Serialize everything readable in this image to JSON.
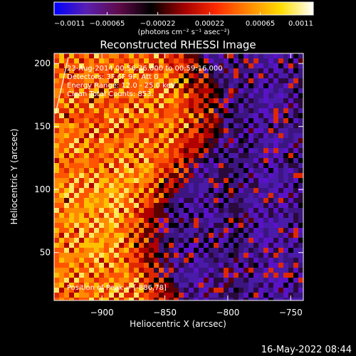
{
  "chart_data": {
    "type": "heatmap",
    "title": "Reconstructed RHESSI Image",
    "xlabel": "Heliocentric X (arcsec)",
    "ylabel": "Heliocentric Y (arcsec)",
    "xlim": [
      -938,
      -740
    ],
    "ylim": [
      12,
      208
    ],
    "xticks": [
      -900,
      -850,
      -800,
      -750
    ],
    "xtick_labels": [
      "−900",
      "−850",
      "−800",
      "−750"
    ],
    "yticks": [
      50,
      100,
      150,
      200
    ],
    "ytick_labels": [
      "50",
      "100",
      "150",
      "200"
    ],
    "colorbar": {
      "min": -0.0011,
      "max": 0.0011,
      "ticks": [
        -0.0011,
        -0.00065,
        -0.00022,
        0.00022,
        0.00065,
        0.0011
      ],
      "tick_labels": [
        "−0.0011",
        "−0.00065",
        "−0.00022",
        "0.00022",
        "0.00065",
        "0.0011"
      ],
      "label": "(photons cm⁻² s⁻¹ asec⁻²)",
      "colormap_stops": [
        "#0000ff",
        "#5a1fb0",
        "#5f0a4a",
        "#000000",
        "#a00000",
        "#ff2a00",
        "#ff8800",
        "#ffdd00",
        "#ffffff"
      ]
    },
    "annotations": [
      "23-Aug-2014 00:56:36.000 to 00:59:16.000",
      "Detectors: 3F 6F 9F, Att 0",
      "Energy Range: 12.0 - 25.0 keV",
      "Clean    Total Counts: 853."
    ],
    "peak_label": "Position of Peak = [-886,78]",
    "peak_position": [
      -886,
      78
    ],
    "limb_line": true
  },
  "footer": {
    "timestamp": "16-May-2022 08:44"
  }
}
